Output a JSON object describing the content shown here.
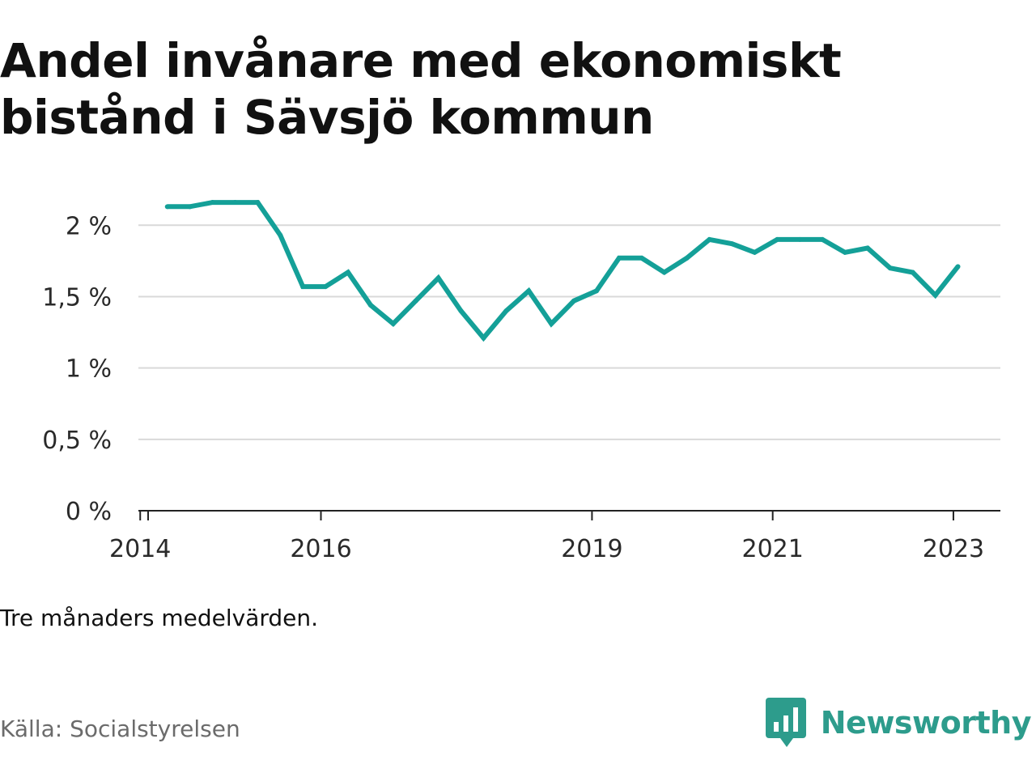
{
  "title": "Andel invånare med ekonomiskt bistånd i Sävsjö kommun",
  "note": "Tre månaders medelvärden.",
  "source": "Källa: Socialstyrelsen",
  "brand": {
    "name": "Newsworthy",
    "icon": "newsworthy-bar-chart-icon",
    "color": "#2d9c8c"
  },
  "colors": {
    "line": "#14a098",
    "grid": "#d9d9d9",
    "axis": "#222222"
  },
  "chart_data": {
    "type": "line",
    "title": "Andel invånare med ekonomiskt bistånd i Sävsjö kommun",
    "xlabel": "",
    "ylabel": "",
    "unit": "%",
    "ylim": [
      0,
      2.2
    ],
    "y_ticks": [
      {
        "value": 0,
        "label": "0 %"
      },
      {
        "value": 0.5,
        "label": "0,5 %"
      },
      {
        "value": 1,
        "label": "1 %"
      },
      {
        "value": 1.5,
        "label": "1,5 %"
      },
      {
        "value": 2,
        "label": "2 %"
      }
    ],
    "x_ticks": [
      {
        "value": 2014.0,
        "label": "2014"
      },
      {
        "value": 2016.0,
        "label": "2016"
      },
      {
        "value": 2019.0,
        "label": "2019"
      },
      {
        "value": 2021.0,
        "label": "2021"
      },
      {
        "value": 2023.0,
        "label": "2023"
      }
    ],
    "xlim": [
      2013.98,
      2023.52
    ],
    "grid": true,
    "legend": "none",
    "series": [
      {
        "x": [
          2014.3,
          2014.55,
          2014.8,
          2015.05,
          2015.3,
          2015.55,
          2015.8,
          2016.05,
          2016.3,
          2016.55,
          2016.8,
          2017.05,
          2017.3,
          2017.55,
          2017.8,
          2018.05,
          2018.3,
          2018.55,
          2018.8,
          2019.05,
          2019.3,
          2019.55,
          2019.8,
          2020.05,
          2020.3,
          2020.55,
          2020.8,
          2021.05,
          2021.3,
          2021.55,
          2021.8,
          2022.05,
          2022.3,
          2022.55,
          2022.8,
          2023.05
        ],
        "y": [
          2.13,
          2.13,
          2.16,
          2.16,
          2.16,
          1.93,
          1.57,
          1.57,
          1.67,
          1.44,
          1.31,
          1.47,
          1.63,
          1.4,
          1.21,
          1.4,
          1.54,
          1.31,
          1.47,
          1.54,
          1.77,
          1.77,
          1.67,
          1.77,
          1.9,
          1.87,
          1.81,
          1.9,
          1.9,
          1.9,
          1.81,
          1.84,
          1.7,
          1.67,
          1.51,
          1.71
        ]
      }
    ]
  }
}
